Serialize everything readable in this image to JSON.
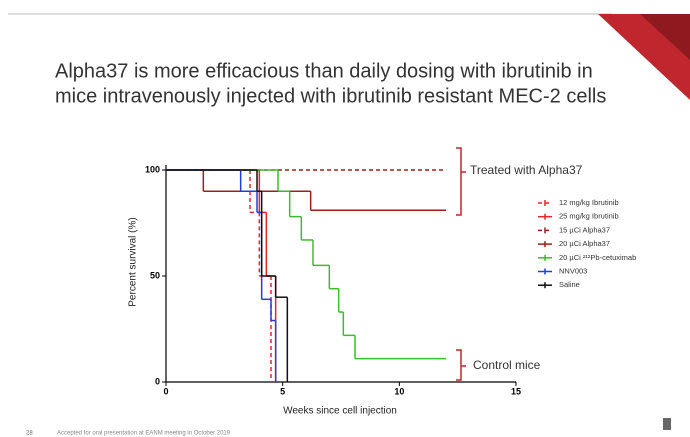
{
  "chart_data": {
    "type": "step",
    "title": [
      "Alpha37 is more efficacious than daily dosing with ibrutinib in",
      "mice intravenously injected with ibrutinib resistant MEC-2 cells"
    ],
    "x_label": "Weeks since cell injection",
    "y_label": "Percent survival (%)",
    "xlim": [
      0,
      15
    ],
    "xticks": [
      0,
      5,
      10,
      15
    ],
    "ylim": [
      0,
      100
    ],
    "yticks": [
      0,
      50,
      100
    ],
    "annotations": [
      "Treated with Alpha37",
      "Control mice"
    ],
    "series": [
      {
        "name": "12 mg/kg Ibrutinib",
        "color": "#e8262a",
        "dashed": true,
        "x": [
          0,
          3.6,
          4.0,
          4.5
        ],
        "values": [
          100,
          80,
          50,
          0
        ]
      },
      {
        "name": "25 mg/kg Ibrutinib",
        "color": "#e8262a",
        "dashed": false,
        "x": [
          0,
          4.0,
          4.3,
          4.7
        ],
        "values": [
          100,
          80,
          50,
          0
        ]
      },
      {
        "name": "15 µCi Alpha37",
        "color": "#a11c1c",
        "dashed": true,
        "x": [
          0,
          12
        ],
        "values": [
          100,
          100
        ]
      },
      {
        "name": "20 µCi Alpha37",
        "color": "#a11c1c",
        "dashed": false,
        "x": [
          0,
          1.6,
          6.2,
          12
        ],
        "values": [
          100,
          90,
          81,
          81
        ]
      },
      {
        "name": "20 µCi ²¹²Pb-cetuximab",
        "color": "#3dbb2e",
        "dashed": false,
        "x": [
          0,
          4.8,
          5.3,
          5.8,
          6.3,
          7.0,
          7.4,
          7.6,
          8.1,
          12
        ],
        "values": [
          100,
          90,
          78,
          67,
          55,
          44,
          33,
          22,
          11,
          11
        ]
      },
      {
        "name": "NNV003",
        "color": "#1f3ee0",
        "dashed": false,
        "x": [
          0,
          3.2,
          3.9,
          4.1,
          4.5,
          4.7
        ],
        "values": [
          100,
          90,
          80,
          39,
          29,
          0
        ]
      },
      {
        "name": "Saline",
        "color": "#111111",
        "dashed": false,
        "x": [
          0,
          3.9,
          4.1,
          4.7,
          5.2
        ],
        "values": [
          100,
          90,
          50,
          40,
          0
        ]
      }
    ]
  },
  "footer": {
    "page_number": "28",
    "note": "Accepted for oral presentation at EANM meeting in October 2019"
  }
}
